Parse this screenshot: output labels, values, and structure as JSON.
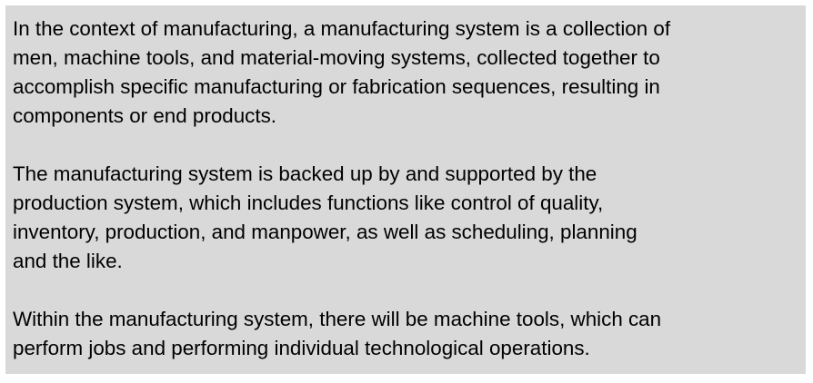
{
  "colors": {
    "box_background": "#d9d9d9",
    "text": "#000000"
  },
  "paragraphs": [
    {
      "lines": [
        "In the context of manufacturing, a manufacturing system is a collection of",
        "men, machine tools, and material-moving systems, collected together to",
        "accomplish specific manufacturing or fabrication sequences, resulting in",
        "components or end products."
      ]
    },
    {
      "lines": [
        "The manufacturing system is backed up by and supported by the",
        "production system, which includes functions like control of quality,",
        "inventory, production, and manpower, as well as scheduling, planning",
        "and the like."
      ]
    },
    {
      "lines": [
        "Within the manufacturing system, there will be machine tools, which can",
        "perform jobs and performing individual technological operations."
      ]
    }
  ]
}
